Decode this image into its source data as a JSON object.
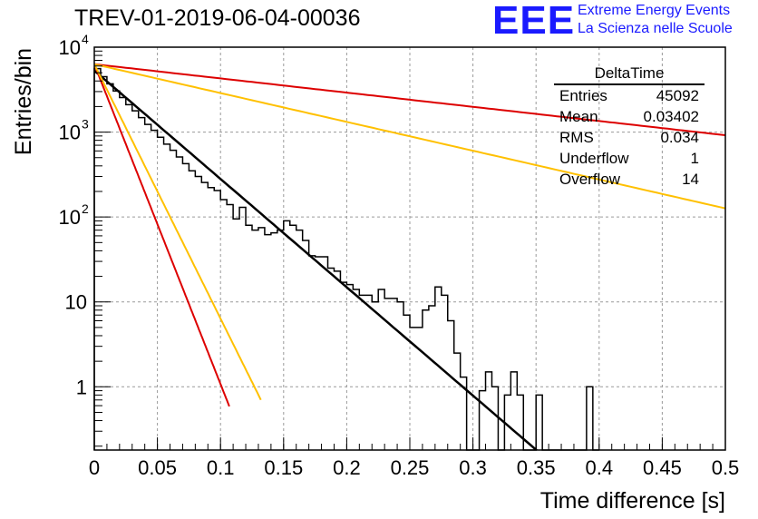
{
  "header": {
    "title": "TREV-01-2019-06-04-00036",
    "logo_mark": "EEE",
    "logo_line1": "Extreme Energy Events",
    "logo_line2": "La Scienza nelle Scuole"
  },
  "stats_box": {
    "title": "DeltaTime",
    "rows": [
      {
        "label": "Entries",
        "value": "45092"
      },
      {
        "label": "Mean",
        "value": "0.03402"
      },
      {
        "label": "RMS",
        "value": "0.034"
      },
      {
        "label": "Underflow",
        "value": "1"
      },
      {
        "label": "Overflow",
        "value": "14"
      }
    ]
  },
  "chart_data": {
    "type": "histogram",
    "title": "TREV-01-2019-06-04-00036",
    "xlabel": "Time difference [s]",
    "ylabel": "Entries/bin",
    "xlim": [
      0,
      0.5
    ],
    "ylim": [
      0.18,
      10000
    ],
    "yscale": "log",
    "grid": true,
    "xticks": [
      "0",
      "0.05",
      "0.1",
      "0.15",
      "0.2",
      "0.25",
      "0.3",
      "0.35",
      "0.4",
      "0.45",
      "0.5"
    ],
    "yticks": [
      {
        "value": 1,
        "label": "1"
      },
      {
        "value": 10,
        "label": "10"
      },
      {
        "value": 100,
        "label": "10",
        "exp": "2"
      },
      {
        "value": 1000,
        "label": "10",
        "exp": "3"
      },
      {
        "value": 10000,
        "label": "10",
        "exp": "4"
      }
    ],
    "bin_width": 0.005,
    "histogram": {
      "color": "#000000",
      "counts": [
        5600,
        4500,
        3700,
        3050,
        2550,
        2100,
        1780,
        1480,
        1230,
        1050,
        870,
        720,
        610,
        510,
        425,
        350,
        300,
        255,
        222,
        205,
        160,
        140,
        95,
        130,
        80,
        70,
        75,
        62,
        65,
        70,
        90,
        80,
        70,
        53,
        35,
        34,
        34,
        25,
        23,
        17,
        16,
        14,
        12,
        12,
        10,
        14,
        11,
        11,
        10,
        7,
        5,
        5,
        8,
        9,
        15,
        12,
        6,
        2.5,
        1.3,
        0.1,
        0.1,
        0.9,
        1.5,
        1,
        0.1,
        0.8,
        1.5,
        0.8,
        0.1,
        0.1,
        0.8,
        0.1,
        0.1,
        0.1,
        0.1,
        0.1,
        0.1,
        0.1,
        1,
        0.1
      ]
    },
    "series": [
      {
        "color": "#000000",
        "amplitude": 5300,
        "tau": 0.03404,
        "x_range": [
          0,
          0.355
        ]
      },
      {
        "color": "#dd0000",
        "amplitude": 6300,
        "tau": 0.01153,
        "x_range": [
          0,
          0.107
        ]
      },
      {
        "color": "#ffc000",
        "amplitude": 6300,
        "tau": 0.0145,
        "x_range": [
          0,
          0.132
        ]
      },
      {
        "color": "#dd0000",
        "amplitude": 6300,
        "tau": 0.2597,
        "x_range": [
          0,
          0.5
        ]
      },
      {
        "color": "#ffc000",
        "amplitude": 6300,
        "tau": 0.1279,
        "x_range": [
          0,
          0.5
        ]
      }
    ]
  }
}
